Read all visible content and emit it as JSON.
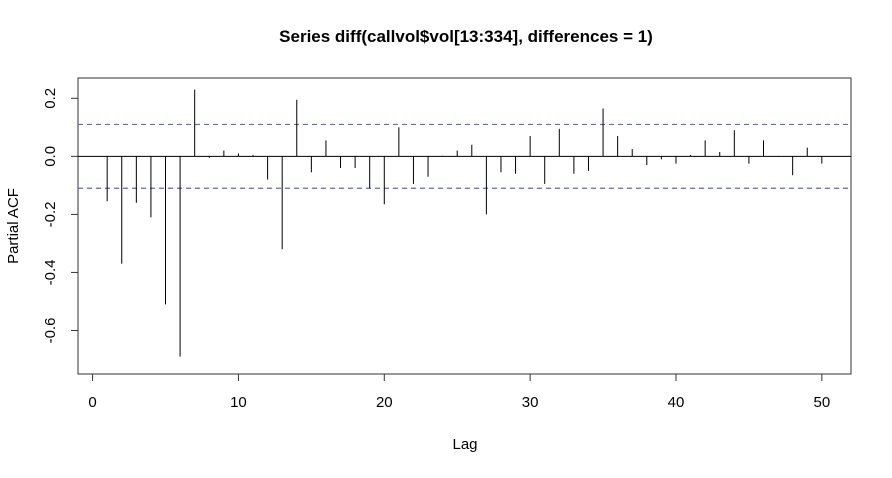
{
  "chart_data": {
    "type": "bar",
    "title": "Series  diff(callvol$vol[13:334], differences = 1)",
    "xlabel": "Lag",
    "ylabel": "Partial ACF",
    "xlim": [
      -1,
      52
    ],
    "ylim": [
      -0.75,
      0.27
    ],
    "x_ticks": [
      0,
      10,
      20,
      30,
      40,
      50
    ],
    "y_ticks": [
      -0.6,
      -0.4,
      -0.2,
      0.0,
      0.2
    ],
    "y_tick_labels": [
      "-0.6",
      "-0.4",
      "-0.2",
      "0.0",
      "0.2"
    ],
    "confidence_bound": 0.11,
    "confidence_color": "#6666cc",
    "bar_color": "#000000",
    "grid": false,
    "x": [
      1,
      2,
      3,
      4,
      5,
      6,
      7,
      8,
      9,
      10,
      11,
      12,
      13,
      14,
      15,
      16,
      17,
      18,
      19,
      20,
      21,
      22,
      23,
      24,
      25,
      26,
      27,
      28,
      29,
      30,
      31,
      32,
      33,
      34,
      35,
      36,
      37,
      38,
      39,
      40,
      41,
      42,
      43,
      44,
      45,
      46,
      47,
      48,
      49,
      50
    ],
    "values": [
      -0.155,
      -0.37,
      -0.16,
      -0.21,
      -0.51,
      -0.69,
      0.23,
      -0.005,
      0.02,
      0.01,
      0.005,
      -0.08,
      -0.32,
      0.195,
      -0.055,
      0.055,
      -0.04,
      -0.04,
      -0.11,
      -0.165,
      0.1,
      -0.095,
      -0.07,
      0.002,
      0.02,
      0.04,
      -0.2,
      -0.055,
      -0.06,
      0.07,
      -0.095,
      0.095,
      -0.06,
      -0.05,
      0.165,
      0.07,
      0.025,
      -0.03,
      -0.01,
      -0.025,
      0.005,
      0.055,
      0.015,
      0.09,
      -0.025,
      0.055,
      -0.002,
      -0.065,
      0.03,
      -0.025
    ]
  }
}
